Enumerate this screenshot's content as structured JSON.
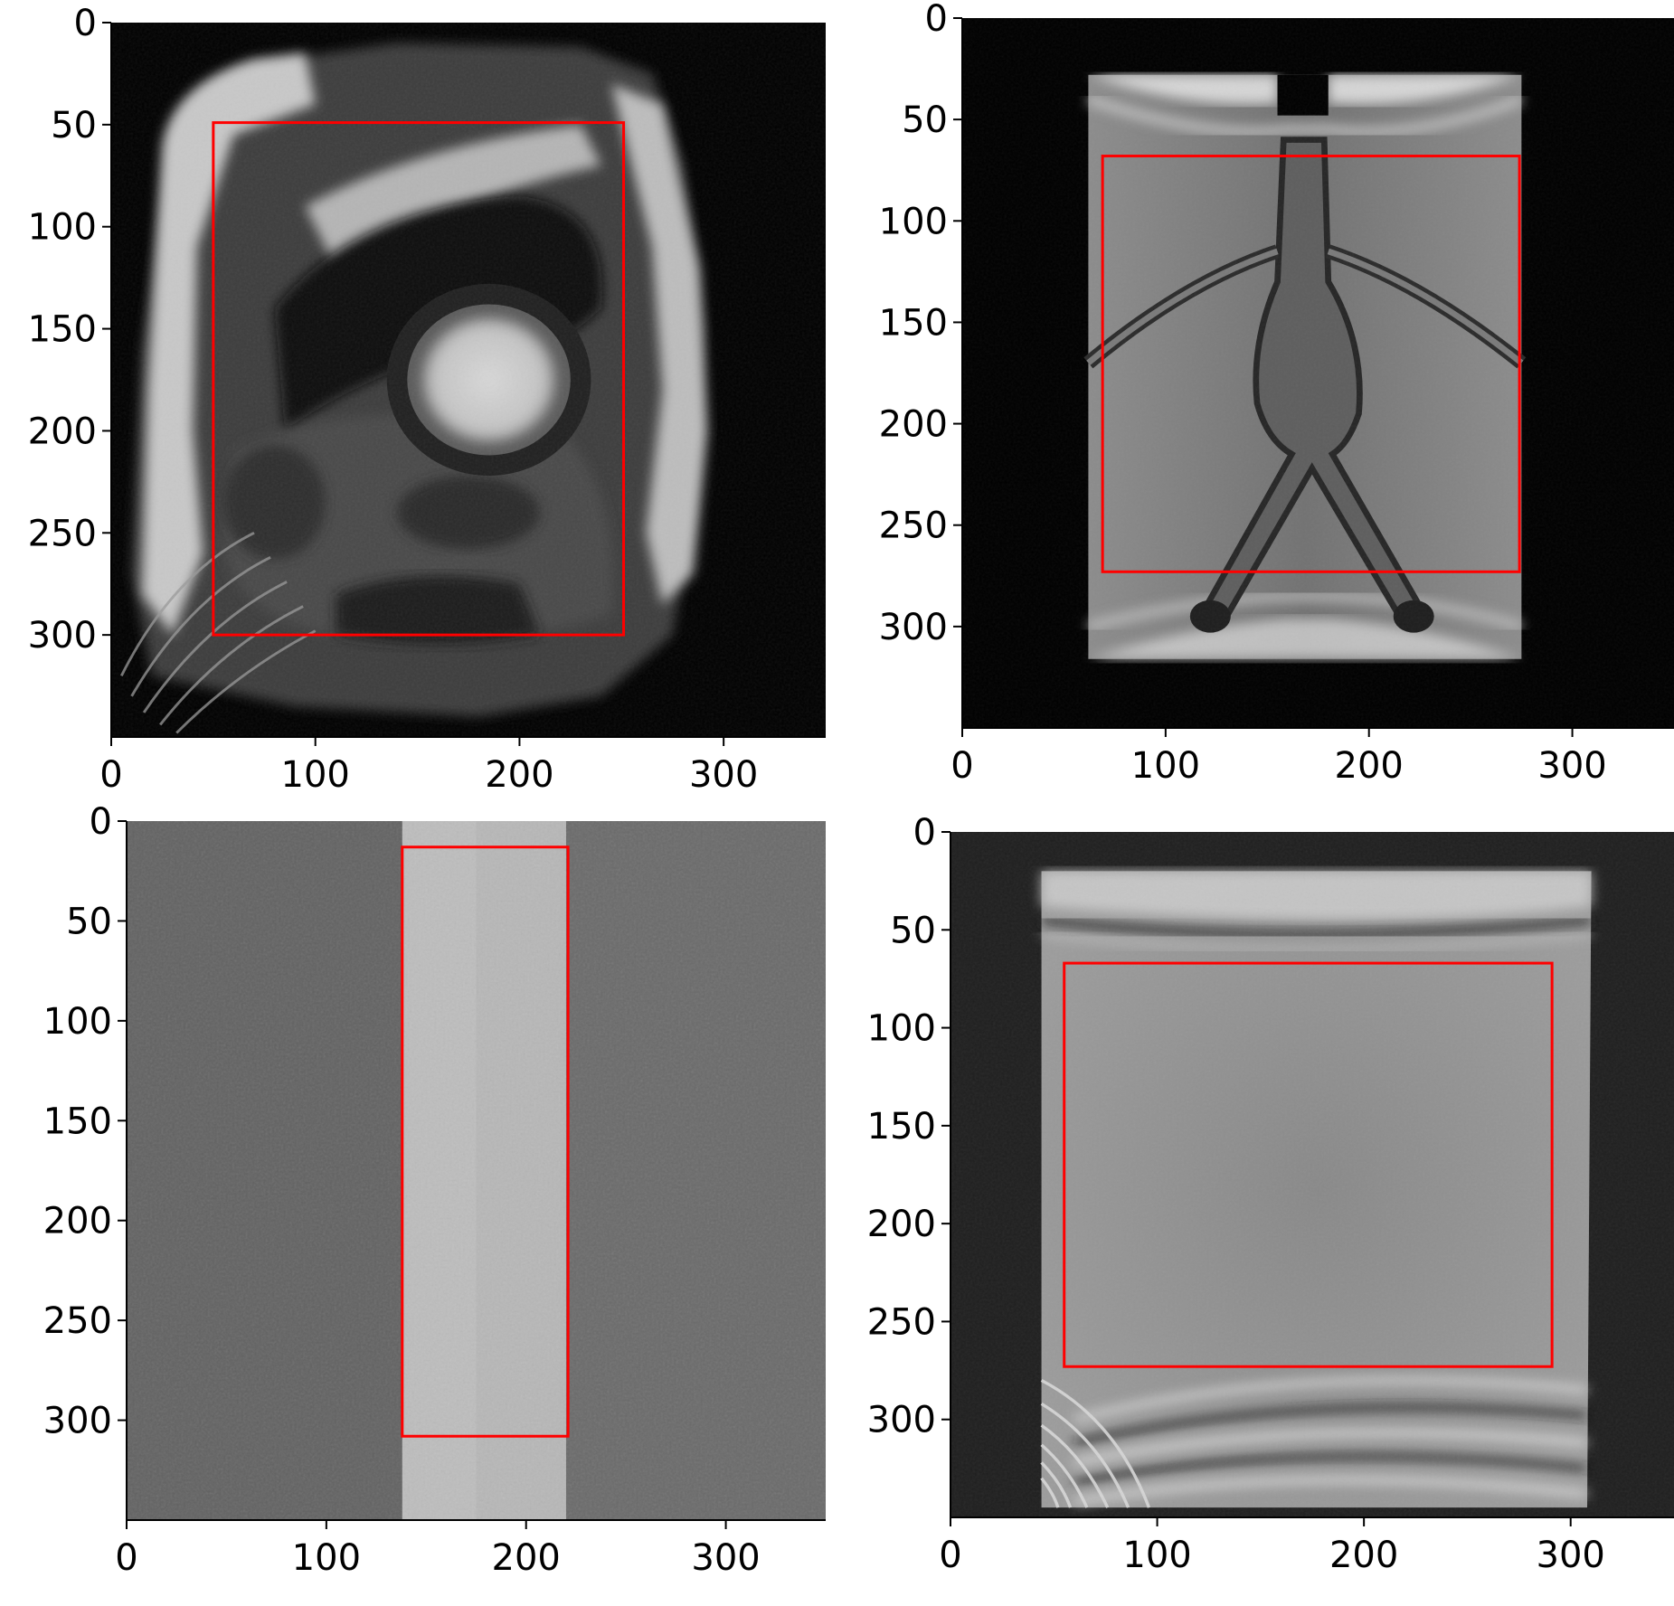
{
  "panels": [
    {
      "name": "panel-top-left",
      "scene": "cardiac",
      "xlim": [
        0,
        350
      ],
      "ylim": [
        350,
        0
      ],
      "xticks": [
        0,
        100,
        200,
        300
      ],
      "xtick_labels": [
        "0",
        "100",
        "200",
        "300"
      ],
      "yticks": [
        0,
        50,
        100,
        150,
        200,
        250,
        300
      ],
      "ytick_labels": [
        "0",
        "50",
        "100",
        "150",
        "200",
        "250",
        "300"
      ],
      "bbox_data": {
        "x0": 50,
        "y0": 49,
        "x1": 251,
        "y1": 300
      },
      "box_color": "#ff0000"
    },
    {
      "name": "panel-top-right",
      "scene": "vessel",
      "xlim": [
        0,
        350
      ],
      "ylim": [
        350,
        0
      ],
      "xticks": [
        0,
        100,
        200,
        300
      ],
      "xtick_labels": [
        "0",
        "100",
        "200",
        "300"
      ],
      "yticks": [
        0,
        50,
        100,
        150,
        200,
        250,
        300
      ],
      "ytick_labels": [
        "0",
        "50",
        "100",
        "150",
        "200",
        "250",
        "300"
      ],
      "bbox_data": {
        "x0": 69,
        "y0": 68,
        "x1": 274,
        "y1": 273
      },
      "box_color": "#ff0000"
    },
    {
      "name": "panel-bottom-left",
      "scene": "strip",
      "xlim": [
        0,
        350
      ],
      "ylim": [
        350,
        0
      ],
      "xticks": [
        0,
        100,
        200,
        300
      ],
      "xtick_labels": [
        "0",
        "100",
        "200",
        "300"
      ],
      "yticks": [
        0,
        50,
        100,
        150,
        200,
        250,
        300
      ],
      "ytick_labels": [
        "0",
        "50",
        "100",
        "150",
        "200",
        "250",
        "300"
      ],
      "bbox_data": {
        "x0": 138,
        "y0": 13,
        "x1": 221,
        "y1": 308
      },
      "box_color": "#ff0000"
    },
    {
      "name": "panel-bottom-right",
      "scene": "phantom",
      "xlim": [
        0,
        350
      ],
      "ylim": [
        350,
        0
      ],
      "xticks": [
        0,
        100,
        200,
        300
      ],
      "xtick_labels": [
        "0",
        "100",
        "200",
        "300"
      ],
      "yticks": [
        0,
        50,
        100,
        150,
        200,
        250,
        300
      ],
      "ytick_labels": [
        "0",
        "50",
        "100",
        "150",
        "200",
        "250",
        "300"
      ],
      "bbox_data": {
        "x0": 55,
        "y0": 67,
        "x1": 291,
        "y1": 273
      },
      "box_color": "#ff0000"
    }
  ]
}
